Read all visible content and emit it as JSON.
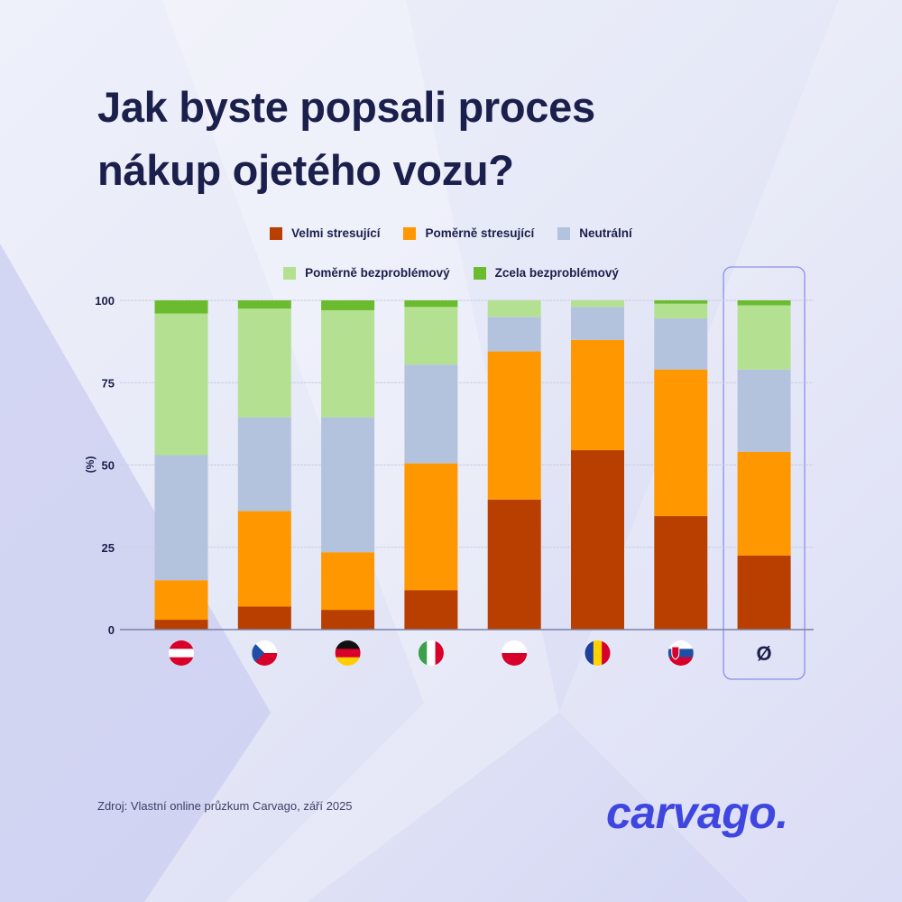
{
  "title_lines": [
    "Jak byste popsali proces",
    "nákup ojetého vozu?"
  ],
  "legend": [
    {
      "label": "Velmi stresující",
      "color": "#b83f00"
    },
    {
      "label": "Poměrně stresující",
      "color": "#ff9800"
    },
    {
      "label": "Neutrální",
      "color": "#b3c3dd"
    },
    {
      "label": "Poměrně bezproblémový",
      "color": "#b3e191"
    },
    {
      "label": "Zcela bezproblémový",
      "color": "#6abc2e"
    }
  ],
  "chart_data": {
    "type": "bar",
    "stacked": true,
    "ylabel": "(%)",
    "ylim": [
      0,
      100
    ],
    "yticks": [
      "0",
      "25",
      "50",
      "75",
      "100"
    ],
    "grid": true,
    "legend_placement": "top",
    "categories": [
      "flag-austria",
      "flag-czechia",
      "flag-germany",
      "flag-italy",
      "flag-poland",
      "flag-romania",
      "flag-slovakia",
      "Ø"
    ],
    "highlighted_category": "Ø",
    "series": [
      {
        "name": "Velmi stresující",
        "values": [
          3,
          7,
          6,
          12,
          39.5,
          54.5,
          34.5,
          22.5
        ]
      },
      {
        "name": "Poměrně stresující",
        "values": [
          12,
          29,
          17.5,
          38.5,
          45,
          33.5,
          44.5,
          31.5
        ]
      },
      {
        "name": "Neutrální",
        "values": [
          38,
          28.5,
          41,
          30,
          10.5,
          10,
          15.5,
          25
        ]
      },
      {
        "name": "Poměrně bezproblémový",
        "values": [
          43,
          33,
          32.5,
          17.5,
          5,
          2,
          4.5,
          19.5
        ]
      },
      {
        "name": "Zcela bezproblémový",
        "values": [
          4,
          2.5,
          3,
          2,
          0,
          0,
          1,
          1.5
        ]
      }
    ]
  },
  "source": "Zdroj: Vlastní online průzkum Carvago, září 2025",
  "logo": "carvago."
}
